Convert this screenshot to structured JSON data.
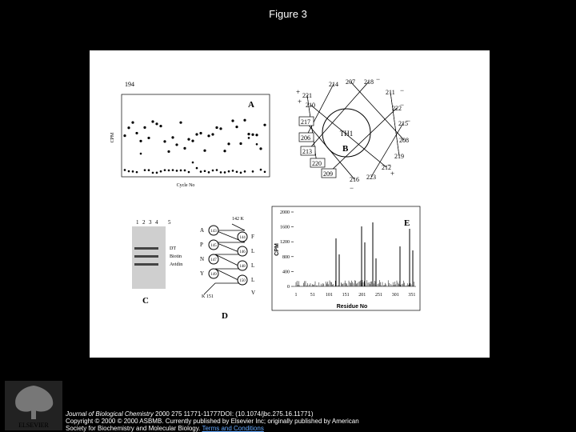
{
  "header": {
    "title": "Figure 3"
  },
  "figure": {
    "panel_a": {
      "label": "A",
      "start": "194",
      "y_label": "CPM",
      "x_label": "Cycle No"
    },
    "panel_b": {
      "label": "B",
      "center": "TH1",
      "residues": [
        "214",
        "207",
        "218",
        "211",
        "221",
        "210",
        "222",
        "217",
        "215",
        "206",
        "208",
        "213",
        "219",
        "220",
        "212",
        "209",
        "216",
        "223"
      ],
      "signs": [
        "−",
        "+",
        "+",
        "−",
        "−",
        "−",
        "−",
        "+",
        "−"
      ]
    },
    "panel_c": {
      "label": "C",
      "lanes": [
        "1",
        "2",
        "3",
        "4",
        "5"
      ],
      "bands": [
        "DT",
        "Biotin",
        "Avidin"
      ]
    },
    "panel_d": {
      "label": "D",
      "top": "142 K",
      "left": [
        "A",
        "P",
        "N",
        "Y"
      ],
      "right": [
        "F",
        "L",
        "L",
        "L",
        "V"
      ],
      "bottom": "K 151",
      "left_circles": [
        "143",
        "145",
        "147",
        "149"
      ],
      "right_circles": [
        "144",
        "146",
        "148",
        "150"
      ]
    },
    "panel_e": {
      "label": "E",
      "y_label": "CPM",
      "x_label": "Residue No",
      "yticks": [
        "0",
        "400",
        "800",
        "1200",
        "1600",
        "2000"
      ],
      "xticks": [
        "1",
        "51",
        "101",
        "151",
        "201",
        "251",
        "301",
        "351"
      ]
    }
  },
  "footer": {
    "journal": "Journal of Biological Chemistry",
    "citation": " 2000 275 11771-11777DOI: (10.1074/jbc.275.16.11771)",
    "copyright": "Copyright © 2000 © 2000 ASBMB. Currently published by Elsevier Inc; originally published by American",
    "society": "Society for Biochemistry and Molecular Biology. ",
    "link": "Terms and Conditions",
    "logo": "ELSEVIER"
  }
}
